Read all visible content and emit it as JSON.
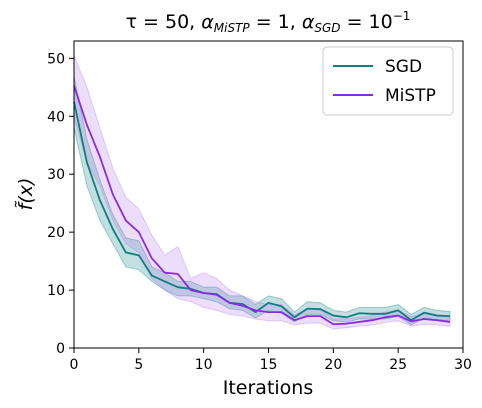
{
  "chart_data": {
    "type": "line",
    "title": "τ = 50, α_MiSTP = 1, α_SGD = 10⁻¹",
    "title_parts": [
      "τ = 50, ",
      "α",
      "MiSTP",
      " = 1, ",
      "α",
      "SGD",
      " = 10",
      "−1"
    ],
    "xlabel": "Iterations",
    "ylabel": "f̃(x)",
    "xlim": [
      0,
      30
    ],
    "ylim": [
      0,
      53
    ],
    "xticks": [
      0,
      5,
      10,
      15,
      20,
      25,
      30
    ],
    "yticks": [
      0,
      10,
      20,
      30,
      40,
      50
    ],
    "grid": false,
    "legend_position": "top-right",
    "x": [
      0,
      1,
      2,
      3,
      4,
      5,
      6,
      7,
      8,
      9,
      10,
      11,
      12,
      13,
      14,
      15,
      16,
      17,
      18,
      19,
      20,
      21,
      22,
      23,
      24,
      25,
      26,
      27,
      28,
      29
    ],
    "series": [
      {
        "name": "SGD",
        "color": "#0f7f7f",
        "band_color": "#0f7f7f",
        "values": [
          42.5,
          32.0,
          25.5,
          20.5,
          16.5,
          16.0,
          12.5,
          11.5,
          10.5,
          10.2,
          9.5,
          9.3,
          7.8,
          7.6,
          6.2,
          7.8,
          7.2,
          5.3,
          6.8,
          6.7,
          5.6,
          5.3,
          6.0,
          5.9,
          5.9,
          6.5,
          4.8,
          6.1,
          5.6,
          5.5
        ],
        "lower": [
          38.0,
          28.0,
          22.0,
          18.0,
          14.0,
          13.5,
          11.5,
          10.0,
          9.0,
          9.0,
          8.5,
          8.0,
          6.8,
          6.5,
          5.2,
          6.5,
          6.0,
          4.5,
          5.8,
          5.8,
          4.7,
          4.5,
          5.0,
          5.0,
          5.0,
          5.5,
          4.0,
          5.2,
          4.8,
          4.8
        ],
        "upper": [
          47.0,
          36.0,
          29.0,
          23.0,
          19.0,
          18.5,
          14.0,
          13.0,
          11.5,
          11.5,
          10.5,
          10.5,
          9.0,
          9.0,
          7.5,
          9.0,
          8.5,
          6.2,
          8.0,
          7.8,
          6.5,
          6.2,
          7.0,
          7.0,
          7.0,
          7.5,
          5.8,
          7.0,
          6.5,
          6.3
        ]
      },
      {
        "name": "MiSTP",
        "color": "#8a2be2",
        "band_color": "#b57cf0",
        "values": [
          45.3,
          38.5,
          33.0,
          26.5,
          22.0,
          20.0,
          15.5,
          13.0,
          12.8,
          10.0,
          9.5,
          9.2,
          7.8,
          7.3,
          6.5,
          6.2,
          6.2,
          4.8,
          5.5,
          5.5,
          4.1,
          4.2,
          4.5,
          4.8,
          5.3,
          5.6,
          4.6,
          5.0,
          4.8,
          4.5
        ],
        "lower": [
          40.0,
          32.0,
          28.0,
          22.0,
          18.0,
          16.5,
          12.0,
          10.0,
          8.5,
          8.0,
          7.0,
          6.5,
          5.8,
          5.5,
          5.0,
          4.7,
          4.7,
          4.0,
          4.3,
          4.3,
          3.3,
          3.5,
          3.8,
          4.0,
          4.4,
          4.7,
          3.8,
          4.1,
          4.0,
          3.7
        ],
        "upper": [
          50.5,
          45.0,
          38.0,
          31.0,
          26.0,
          24.0,
          19.5,
          16.0,
          17.5,
          12.0,
          13.0,
          12.0,
          10.0,
          9.0,
          8.0,
          7.5,
          7.5,
          5.7,
          6.7,
          6.7,
          5.0,
          5.0,
          5.3,
          5.6,
          6.2,
          6.5,
          5.4,
          5.9,
          5.6,
          5.3
        ]
      }
    ]
  }
}
